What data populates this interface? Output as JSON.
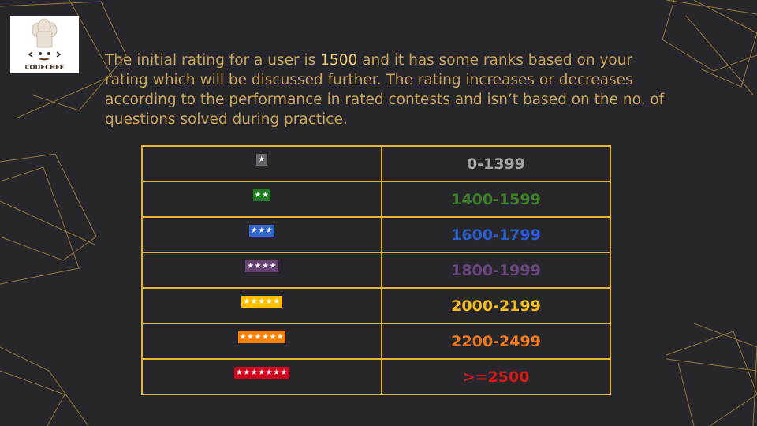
{
  "logo": {
    "text": "CODECHEF",
    "icon": "chef-hat-icon"
  },
  "intro": {
    "before": "The initial rating for a user is ",
    "highlight": "1500",
    "after": " and it has some ranks based on your rating which will be discussed further. The rating increases or decreases according to the performance in rated contests and isn’t based on the no. of questions solved during practice."
  },
  "ranks": [
    {
      "stars": "★",
      "range": "0-1399",
      "star_bg": "#666666",
      "color": "#a6a6a6"
    },
    {
      "stars": "★★",
      "range": "1400-1599",
      "star_bg": "#1e7d22",
      "color": "#3f7f2a"
    },
    {
      "stars": "★★★",
      "range": "1600-1799",
      "star_bg": "#3366cc",
      "color": "#2a5ecf"
    },
    {
      "stars": "★★★★",
      "range": "1800-1999",
      "star_bg": "#684273",
      "color": "#6c4680"
    },
    {
      "stars": "★★★★★",
      "range": "2000-2199",
      "star_bg": "#ffbf00",
      "color": "#f5bd18"
    },
    {
      "stars": "★★★★★★",
      "range": "2200-2499",
      "star_bg": "#ff7f00",
      "color": "#f07b1e"
    },
    {
      "stars": "★★★★★★★",
      "range": ">=2500",
      "star_bg": "#d0011b",
      "color": "#d11a1a"
    }
  ]
}
